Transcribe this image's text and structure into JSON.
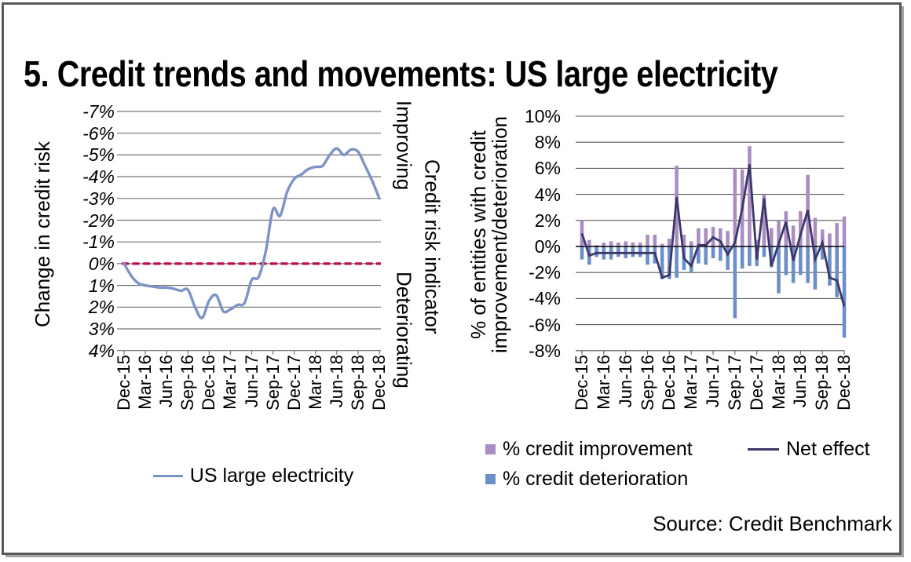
{
  "title": "5. Credit trends and movements: US large electricity",
  "source": "Source: Credit Benchmark",
  "colors": {
    "line_blue": "#7B93C7",
    "baseline_red": "#C00A53",
    "bar_improvement": "#AC8DC3",
    "bar_deterioration": "#6D8FC7",
    "line_net": "#3B3769",
    "gridline_left": "#737373",
    "gridline_right": "#595959",
    "zero_axis": "#000000",
    "frame": "#58595b"
  },
  "chart_data": [
    {
      "type": "line",
      "name": "change-in-credit-risk",
      "ylabel": "Change in credit risk",
      "y_ticks": [
        "-7%",
        "-6%",
        "-5%",
        "-4%",
        "-3%",
        "-2%",
        "-1%",
        "0%",
        "1%",
        "2%",
        "3%",
        "4%"
      ],
      "ylim_top_to_bottom": [
        -7,
        4
      ],
      "y_axis_reversed": true,
      "grid": true,
      "x_tick_labels": [
        "Dec-15",
        "Mar-16",
        "Jun-16",
        "Sep-16",
        "Dec-16",
        "Mar-17",
        "Jun-17",
        "Sep-17",
        "Dec-17",
        "Mar-18",
        "Jun-18",
        "Sep-18",
        "Dec-18"
      ],
      "points_per_tick": 3,
      "baseline": {
        "value": 0,
        "style": "dashed"
      },
      "series": [
        {
          "name": "US large electricity",
          "type": "line",
          "values": [
            0.0,
            0.55,
            0.9,
            1.0,
            1.05,
            1.1,
            1.1,
            1.15,
            1.25,
            1.2,
            2.0,
            2.5,
            1.7,
            1.45,
            2.2,
            2.1,
            1.9,
            1.8,
            0.75,
            0.6,
            -0.6,
            -2.5,
            -2.2,
            -3.3,
            -3.9,
            -4.1,
            -4.35,
            -4.45,
            -4.5,
            -5.0,
            -5.3,
            -5.0,
            -5.25,
            -5.15,
            -4.5,
            -3.8,
            -3.0
          ]
        }
      ],
      "right_axis": {
        "top_label": "Improving",
        "bottom_label": "Deteriorating",
        "title": "Credit risk indicator"
      },
      "legend": [
        {
          "label": "US large electricity",
          "type": "line"
        }
      ],
      "legend_position": "bottom"
    },
    {
      "type": "bar+line",
      "name": "entities-with-credit-improvement-deterioration",
      "ylabel_line1": "% of entities with credit",
      "ylabel_line2": "improvement/deterioration",
      "y_ticks": [
        "10%",
        "8%",
        "6%",
        "4%",
        "2%",
        "0%",
        "-2%",
        "-4%",
        "-6%",
        "-8%"
      ],
      "ylim": [
        -8,
        10
      ],
      "grid": true,
      "x_tick_labels": [
        "Dec-15",
        "Mar-16",
        "Jun-16",
        "Sep-16",
        "Dec-16",
        "Mar-17",
        "Jun-17",
        "Sep-17",
        "Dec-17",
        "Mar-18",
        "Jun-18",
        "Sep-18",
        "Dec-18"
      ],
      "points_per_tick": 3,
      "series": [
        {
          "name": "% credit improvement",
          "type": "bar",
          "values": [
            2.0,
            0.5,
            0.1,
            0.3,
            0.4,
            0.3,
            0.4,
            0.3,
            0.3,
            0.9,
            0.9,
            0.2,
            0.6,
            6.2,
            0.9,
            0.4,
            1.4,
            1.4,
            1.5,
            1.4,
            1.2,
            6.0,
            5.9,
            7.7,
            0.5,
            4.0,
            1.4,
            2.0,
            2.7,
            1.6,
            2.7,
            5.5,
            2.2,
            1.3,
            1.0,
            1.8,
            2.3
          ]
        },
        {
          "name": "% credit deterioration",
          "type": "bar",
          "values": [
            -1.0,
            -1.4,
            -0.8,
            -1.0,
            -1.0,
            -0.8,
            -0.9,
            -0.8,
            -0.8,
            -1.4,
            -1.3,
            -2.5,
            -2.5,
            -2.4,
            -1.8,
            -2.0,
            -1.3,
            -1.4,
            -0.9,
            -1.1,
            -1.8,
            -5.5,
            -1.7,
            -1.5,
            -1.5,
            -0.8,
            -1.6,
            -3.6,
            -2.2,
            -2.8,
            -2.2,
            -2.8,
            -3.3,
            -1.0,
            -3.0,
            -3.9,
            -7.0
          ]
        },
        {
          "name": "Net effect",
          "type": "line",
          "values": [
            1.0,
            -0.7,
            -0.5,
            -0.5,
            -0.5,
            -0.5,
            -0.5,
            -0.5,
            -0.5,
            -0.5,
            -0.5,
            -2.4,
            -2.2,
            3.8,
            -0.9,
            -1.5,
            0.1,
            0.1,
            0.7,
            0.4,
            -0.6,
            0.3,
            2.9,
            6.3,
            -1.0,
            3.7,
            -1.5,
            0.2,
            1.9,
            -1.1,
            0.9,
            2.8,
            -1.0,
            0.3,
            -2.4,
            -2.6,
            -4.6
          ]
        }
      ],
      "legend_position": "bottom"
    }
  ]
}
